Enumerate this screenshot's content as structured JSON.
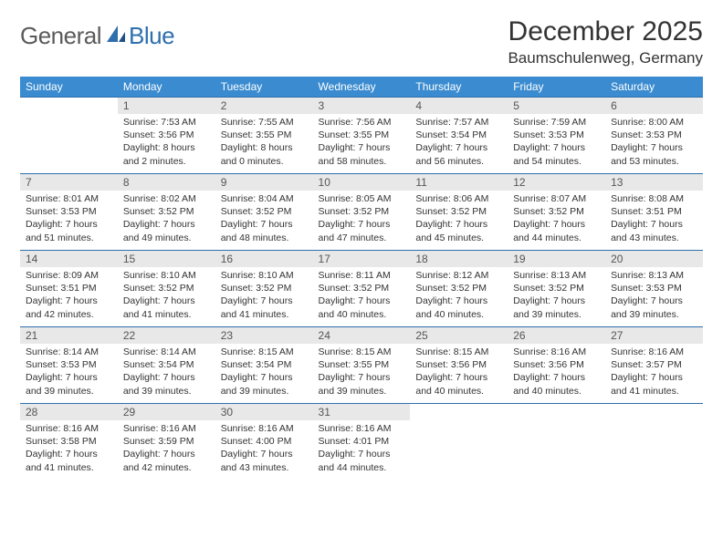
{
  "brand": {
    "word1": "General",
    "word2": "Blue"
  },
  "title": "December 2025",
  "location": "Baumschulenweg, Germany",
  "colors": {
    "header_bg": "#3a8bd0",
    "header_text": "#ffffff",
    "daynum_bg": "#e8e8e8",
    "rule": "#2f6fae",
    "body_text": "#333333",
    "logo_gray": "#5a5a5a",
    "logo_blue": "#2f6fae"
  },
  "weekdays": [
    "Sunday",
    "Monday",
    "Tuesday",
    "Wednesday",
    "Thursday",
    "Friday",
    "Saturday"
  ],
  "weeks": [
    [
      null,
      {
        "n": "1",
        "sr": "Sunrise: 7:53 AM",
        "ss": "Sunset: 3:56 PM",
        "dl": "Daylight: 8 hours and 2 minutes."
      },
      {
        "n": "2",
        "sr": "Sunrise: 7:55 AM",
        "ss": "Sunset: 3:55 PM",
        "dl": "Daylight: 8 hours and 0 minutes."
      },
      {
        "n": "3",
        "sr": "Sunrise: 7:56 AM",
        "ss": "Sunset: 3:55 PM",
        "dl": "Daylight: 7 hours and 58 minutes."
      },
      {
        "n": "4",
        "sr": "Sunrise: 7:57 AM",
        "ss": "Sunset: 3:54 PM",
        "dl": "Daylight: 7 hours and 56 minutes."
      },
      {
        "n": "5",
        "sr": "Sunrise: 7:59 AM",
        "ss": "Sunset: 3:53 PM",
        "dl": "Daylight: 7 hours and 54 minutes."
      },
      {
        "n": "6",
        "sr": "Sunrise: 8:00 AM",
        "ss": "Sunset: 3:53 PM",
        "dl": "Daylight: 7 hours and 53 minutes."
      }
    ],
    [
      {
        "n": "7",
        "sr": "Sunrise: 8:01 AM",
        "ss": "Sunset: 3:53 PM",
        "dl": "Daylight: 7 hours and 51 minutes."
      },
      {
        "n": "8",
        "sr": "Sunrise: 8:02 AM",
        "ss": "Sunset: 3:52 PM",
        "dl": "Daylight: 7 hours and 49 minutes."
      },
      {
        "n": "9",
        "sr": "Sunrise: 8:04 AM",
        "ss": "Sunset: 3:52 PM",
        "dl": "Daylight: 7 hours and 48 minutes."
      },
      {
        "n": "10",
        "sr": "Sunrise: 8:05 AM",
        "ss": "Sunset: 3:52 PM",
        "dl": "Daylight: 7 hours and 47 minutes."
      },
      {
        "n": "11",
        "sr": "Sunrise: 8:06 AM",
        "ss": "Sunset: 3:52 PM",
        "dl": "Daylight: 7 hours and 45 minutes."
      },
      {
        "n": "12",
        "sr": "Sunrise: 8:07 AM",
        "ss": "Sunset: 3:52 PM",
        "dl": "Daylight: 7 hours and 44 minutes."
      },
      {
        "n": "13",
        "sr": "Sunrise: 8:08 AM",
        "ss": "Sunset: 3:51 PM",
        "dl": "Daylight: 7 hours and 43 minutes."
      }
    ],
    [
      {
        "n": "14",
        "sr": "Sunrise: 8:09 AM",
        "ss": "Sunset: 3:51 PM",
        "dl": "Daylight: 7 hours and 42 minutes."
      },
      {
        "n": "15",
        "sr": "Sunrise: 8:10 AM",
        "ss": "Sunset: 3:52 PM",
        "dl": "Daylight: 7 hours and 41 minutes."
      },
      {
        "n": "16",
        "sr": "Sunrise: 8:10 AM",
        "ss": "Sunset: 3:52 PM",
        "dl": "Daylight: 7 hours and 41 minutes."
      },
      {
        "n": "17",
        "sr": "Sunrise: 8:11 AM",
        "ss": "Sunset: 3:52 PM",
        "dl": "Daylight: 7 hours and 40 minutes."
      },
      {
        "n": "18",
        "sr": "Sunrise: 8:12 AM",
        "ss": "Sunset: 3:52 PM",
        "dl": "Daylight: 7 hours and 40 minutes."
      },
      {
        "n": "19",
        "sr": "Sunrise: 8:13 AM",
        "ss": "Sunset: 3:52 PM",
        "dl": "Daylight: 7 hours and 39 minutes."
      },
      {
        "n": "20",
        "sr": "Sunrise: 8:13 AM",
        "ss": "Sunset: 3:53 PM",
        "dl": "Daylight: 7 hours and 39 minutes."
      }
    ],
    [
      {
        "n": "21",
        "sr": "Sunrise: 8:14 AM",
        "ss": "Sunset: 3:53 PM",
        "dl": "Daylight: 7 hours and 39 minutes."
      },
      {
        "n": "22",
        "sr": "Sunrise: 8:14 AM",
        "ss": "Sunset: 3:54 PM",
        "dl": "Daylight: 7 hours and 39 minutes."
      },
      {
        "n": "23",
        "sr": "Sunrise: 8:15 AM",
        "ss": "Sunset: 3:54 PM",
        "dl": "Daylight: 7 hours and 39 minutes."
      },
      {
        "n": "24",
        "sr": "Sunrise: 8:15 AM",
        "ss": "Sunset: 3:55 PM",
        "dl": "Daylight: 7 hours and 39 minutes."
      },
      {
        "n": "25",
        "sr": "Sunrise: 8:15 AM",
        "ss": "Sunset: 3:56 PM",
        "dl": "Daylight: 7 hours and 40 minutes."
      },
      {
        "n": "26",
        "sr": "Sunrise: 8:16 AM",
        "ss": "Sunset: 3:56 PM",
        "dl": "Daylight: 7 hours and 40 minutes."
      },
      {
        "n": "27",
        "sr": "Sunrise: 8:16 AM",
        "ss": "Sunset: 3:57 PM",
        "dl": "Daylight: 7 hours and 41 minutes."
      }
    ],
    [
      {
        "n": "28",
        "sr": "Sunrise: 8:16 AM",
        "ss": "Sunset: 3:58 PM",
        "dl": "Daylight: 7 hours and 41 minutes."
      },
      {
        "n": "29",
        "sr": "Sunrise: 8:16 AM",
        "ss": "Sunset: 3:59 PM",
        "dl": "Daylight: 7 hours and 42 minutes."
      },
      {
        "n": "30",
        "sr": "Sunrise: 8:16 AM",
        "ss": "Sunset: 4:00 PM",
        "dl": "Daylight: 7 hours and 43 minutes."
      },
      {
        "n": "31",
        "sr": "Sunrise: 8:16 AM",
        "ss": "Sunset: 4:01 PM",
        "dl": "Daylight: 7 hours and 44 minutes."
      },
      null,
      null,
      null
    ]
  ]
}
